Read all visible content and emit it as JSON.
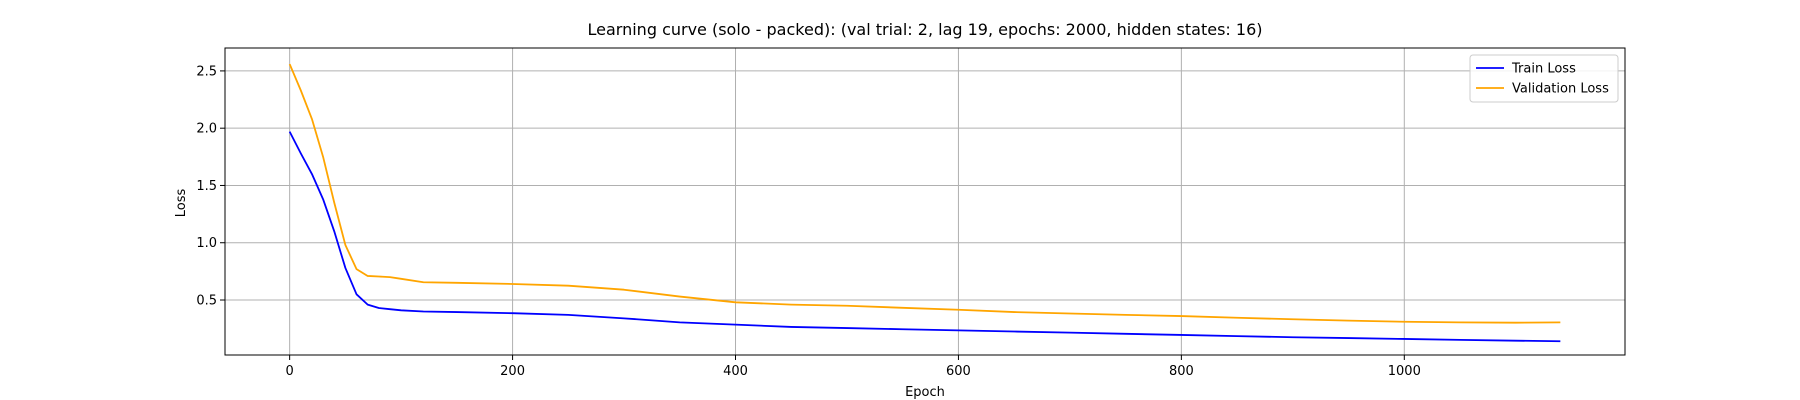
{
  "chart_data": {
    "type": "line",
    "title": "Learning curve (solo - packed): (val trial: 2, lag 19, epochs: 2000, hidden states: 16)",
    "xlabel": "Epoch",
    "ylabel": "Loss",
    "xlim": [
      -58,
      1198
    ],
    "ylim": [
      0.02,
      2.7
    ],
    "xticks": [
      0,
      200,
      400,
      600,
      800,
      1000
    ],
    "yticks": [
      0.5,
      1.0,
      1.5,
      2.0,
      2.5
    ],
    "xtick_labels": [
      "0",
      "200",
      "400",
      "600",
      "800",
      "1000"
    ],
    "ytick_labels": [
      "0.5",
      "1.0",
      "1.5",
      "2.0",
      "2.5"
    ],
    "grid": true,
    "legend_position": "top-right",
    "series": [
      {
        "name": "Train Loss",
        "color": "#0000ff",
        "x": [
          0,
          10,
          20,
          30,
          40,
          50,
          60,
          70,
          80,
          90,
          100,
          120,
          150,
          200,
          250,
          300,
          350,
          400,
          450,
          500,
          550,
          600,
          650,
          700,
          750,
          800,
          850,
          900,
          950,
          1000,
          1050,
          1100,
          1140
        ],
        "y": [
          1.97,
          1.78,
          1.6,
          1.38,
          1.1,
          0.78,
          0.55,
          0.46,
          0.43,
          0.42,
          0.41,
          0.4,
          0.395,
          0.385,
          0.37,
          0.34,
          0.305,
          0.285,
          0.265,
          0.255,
          0.245,
          0.235,
          0.225,
          0.215,
          0.205,
          0.195,
          0.185,
          0.175,
          0.168,
          0.16,
          0.152,
          0.145,
          0.14
        ]
      },
      {
        "name": "Validation Loss",
        "color": "#ffa500",
        "x": [
          0,
          10,
          20,
          30,
          40,
          50,
          60,
          70,
          80,
          90,
          100,
          120,
          150,
          200,
          250,
          300,
          350,
          400,
          450,
          500,
          550,
          600,
          650,
          700,
          750,
          800,
          850,
          900,
          950,
          1000,
          1050,
          1100,
          1140
        ],
        "y": [
          2.56,
          2.33,
          2.08,
          1.75,
          1.35,
          0.98,
          0.77,
          0.71,
          0.705,
          0.7,
          0.685,
          0.655,
          0.65,
          0.64,
          0.625,
          0.59,
          0.53,
          0.48,
          0.46,
          0.45,
          0.432,
          0.415,
          0.395,
          0.382,
          0.37,
          0.36,
          0.345,
          0.332,
          0.32,
          0.31,
          0.305,
          0.302,
          0.305
        ]
      }
    ]
  }
}
